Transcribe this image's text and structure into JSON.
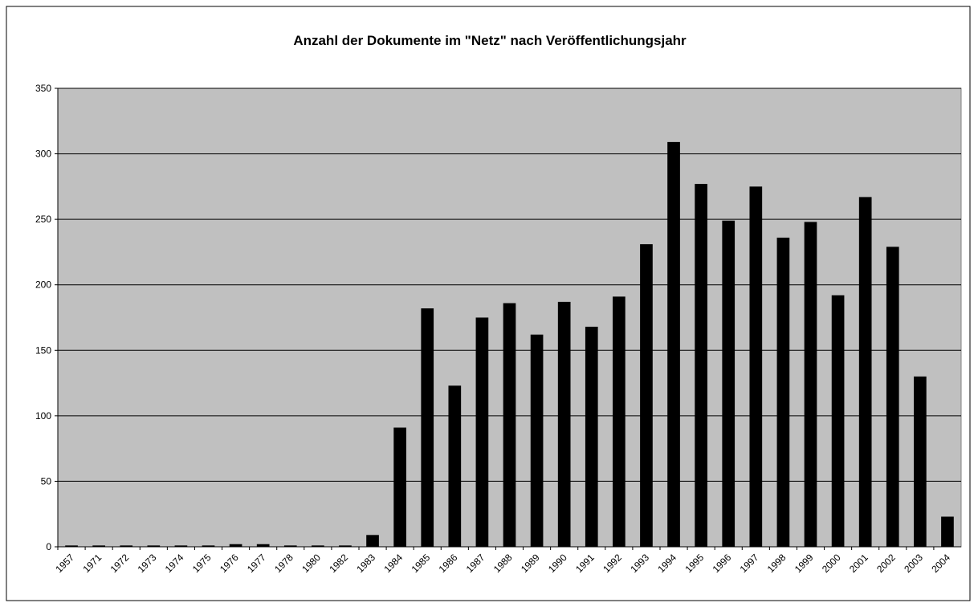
{
  "chart_data": {
    "type": "bar",
    "title": "Anzahl der Dokumente im \"Netz\" nach Veröffentlichungsjahr",
    "categories": [
      "1957",
      "1971",
      "1972",
      "1973",
      "1974",
      "1975",
      "1976",
      "1977",
      "1978",
      "1980",
      "1982",
      "1983",
      "1984",
      "1985",
      "1986",
      "1987",
      "1988",
      "1989",
      "1990",
      "1991",
      "1992",
      "1993",
      "1994",
      "1995",
      "1996",
      "1997",
      "1998",
      "1999",
      "2000",
      "2001",
      "2002",
      "2003",
      "2004"
    ],
    "values": [
      1,
      1,
      1,
      1,
      1,
      1,
      2,
      2,
      1,
      1,
      1,
      9,
      91,
      182,
      123,
      175,
      186,
      162,
      187,
      168,
      191,
      231,
      309,
      277,
      249,
      275,
      236,
      248,
      192,
      267,
      229,
      130,
      23
    ],
    "color": "#000000",
    "ylim": [
      0,
      350
    ],
    "yticks": [
      0,
      50,
      100,
      150,
      200,
      250,
      300,
      350
    ],
    "grid": true
  }
}
